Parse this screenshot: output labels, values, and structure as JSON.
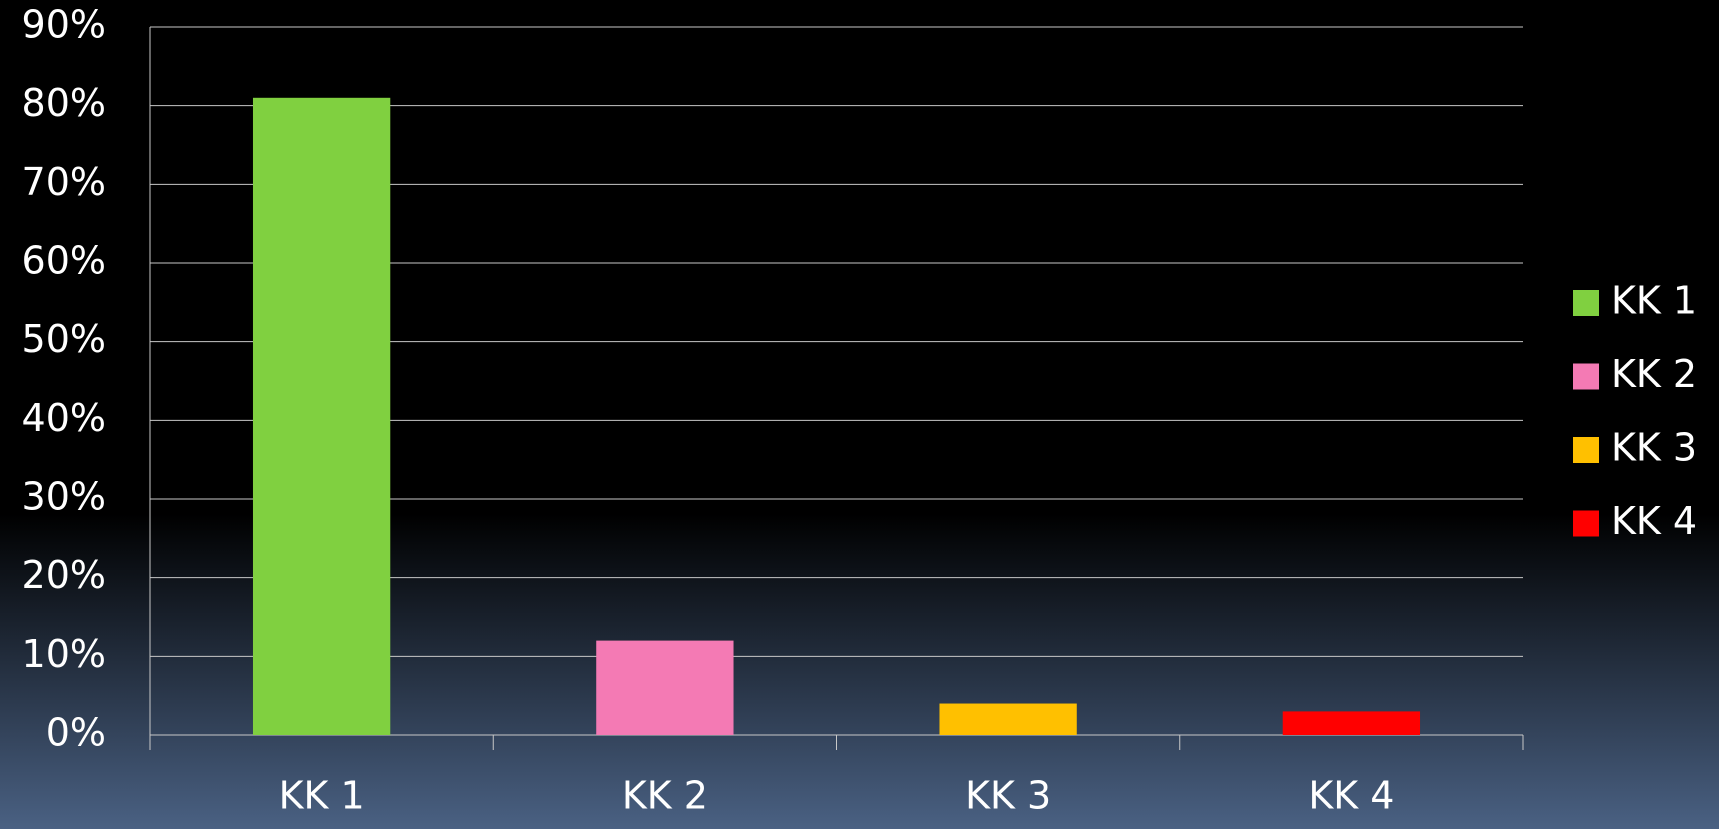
{
  "chart_data": {
    "type": "bar",
    "categories": [
      "KK 1",
      "KK 2",
      "KK 3",
      "KK 4"
    ],
    "values": [
      81,
      12,
      4,
      3
    ],
    "colors": [
      "#80d040",
      "#f47ab4",
      "#ffc000",
      "#ff0000"
    ],
    "ylim": [
      0,
      90
    ],
    "yticks": [
      {
        "value": 0,
        "label": "0%"
      },
      {
        "value": 10,
        "label": "10%"
      },
      {
        "value": 20,
        "label": "20%"
      },
      {
        "value": 30,
        "label": "30%"
      },
      {
        "value": 40,
        "label": "40%"
      },
      {
        "value": 50,
        "label": "50%"
      },
      {
        "value": 60,
        "label": "60%"
      },
      {
        "value": 70,
        "label": "70%"
      },
      {
        "value": 80,
        "label": "80%"
      },
      {
        "value": 90,
        "label": "90%"
      }
    ],
    "grid": true,
    "legend": "right"
  }
}
